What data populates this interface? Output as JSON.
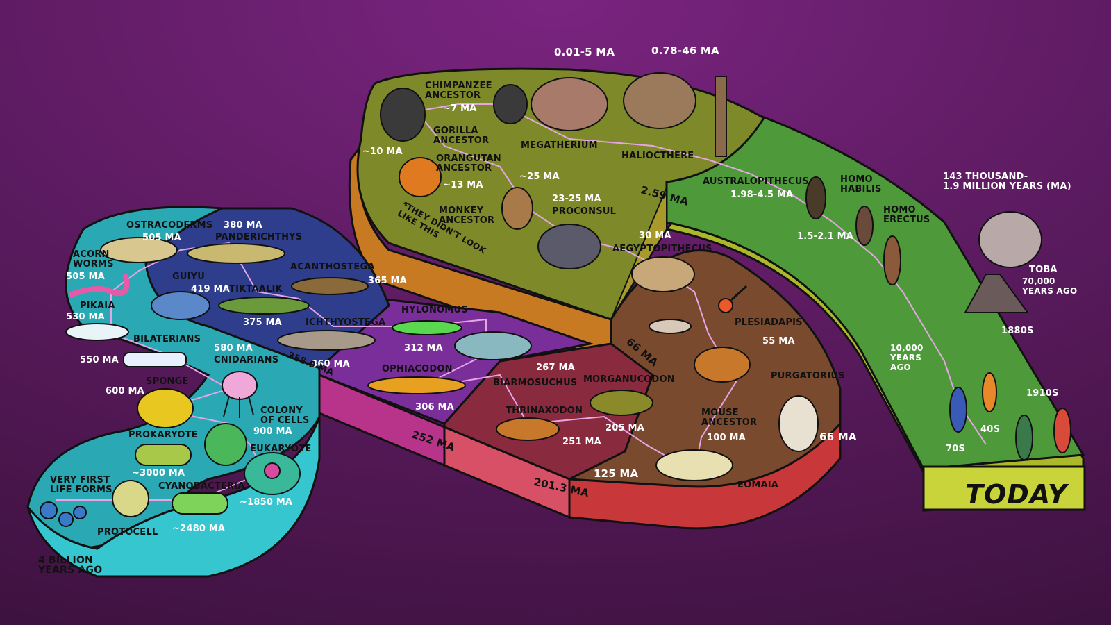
{
  "colors": {
    "background": "#5a1a5e",
    "teal": "#2aa8b4",
    "blue": "#2e3e8c",
    "purple": "#7a2e9a",
    "magenta": "#b8338a",
    "maroon": "#8a2a3e",
    "brown": "#7a4a2e",
    "red": "#c8383a",
    "olive": "#7e8a2a",
    "orange": "#d0882a",
    "green": "#4e9a3a",
    "lime": "#c8d43a"
  },
  "labels": {
    "four_billion": "4 BILLION\nYEARS AGO",
    "very_first": "VERY FIRST\nLIFE FORMS",
    "protocell": "PROTOCELL",
    "cyanobacteria": "CYANOBACTERIA",
    "cyano_ma": "~2480 Ma",
    "prokaryote": "PROKARYOTE",
    "prokaryote_ma": "~3000 Ma",
    "eukaryote": "EUKARYOTE",
    "eukaryote_ma": "~1850 Ma",
    "colony": "COLONY\nOF CELLS",
    "colony_ma": "900 Ma",
    "sponge": "SPONGE",
    "sponge_ma": "600 Ma",
    "cnidarians": "CNIDARIANS",
    "cnidarians_ma": "580 Ma",
    "bilaterians": "BILATERIANS",
    "bilaterians_ma": "550 Ma",
    "pikaia": "PIKAIA",
    "pikaia_ma": "530 Ma",
    "acorn": "ACORN\nWORMS",
    "acorn_ma": "505 Ma",
    "ostracoderms": "OSTRACODERMS",
    "ostracoderms_ma": "505 Ma",
    "guiyu": "GUIYU",
    "guiyu_ma": "419 Ma",
    "panderichthys": "PANDERICHTHYS",
    "panderichthys_ma": "380 Ma",
    "tiktaalik": "TIKTAALIK",
    "tiktaalik_ma": "375 Ma",
    "acanthostega": "ACANTHOSTEGA",
    "acanthostega_ma": "365 Ma",
    "ichthyostega": "ICHTHYOSTEGA",
    "ichthyostega_ma": "360 Ma",
    "boundary_3589": "358.9 Ma",
    "hylonomus": "HYLONOMUS",
    "hylonomus_ma": "312 Ma",
    "ophiacodon": "OPHIACODON",
    "ophiacodon_ma": "306 Ma",
    "biarmosuchus": "BIARMOSUCHUS",
    "biarmosuchus_ma": "267 Ma",
    "boundary_252": "252 Ma",
    "thrinaxodon": "THRINAXODON",
    "thrinaxodon_ma": "251 Ma",
    "morganucodon": "MORGANUCODON",
    "morganucodon_ma": "205 Ma",
    "boundary_2013": "201.3 Ma",
    "eomaia": "EOMAIA",
    "eomaia_ma": "125 Ma",
    "mouse_ancestor": "MOUSE\nANCESTOR",
    "mouse_ma": "100 Ma",
    "purgatorius": "PURGATORIUS",
    "purgatorius_ma": "66 Ma",
    "boundary_66": "66 Ma",
    "plesiadapis": "PLESIADAPIS",
    "plesiadapis_ma": "55 Ma",
    "aegyptopithecus": "AEGYPTOPITHECUS",
    "aegyptopithecus_ma": "30 Ma",
    "proconsul": "PROCONSUL",
    "proconsul_ma": "23-25 Ma",
    "monkey": "MONKEY\nANCESTOR",
    "monkey_ma": "~25 Ma",
    "orangutan": "ORANGUTAN\nANCESTOR",
    "orangutan_ma": "~13 Ma",
    "gorilla": "GORILLA\nANCESTOR",
    "gorilla_ma": "~10 Ma",
    "chimp": "CHIMPANZEE\nANCESTOR",
    "chimp_ma": "~7 Ma",
    "note": "*THEY DIDN'T LOOK\nLIKE THIS",
    "megatherium": "MEGATHERIUM",
    "megatherium_ma": "0.01-5 Ma",
    "haliocthere": "HALIOCTHERE",
    "haliocthere_ma": "0.78-46 Ma",
    "boundary_259": "2.59 Ma",
    "australopithecus": "AUSTRALOPITHECUS",
    "australopithecus_ma": "1.98-4.5 Ma",
    "homo_habilis": "HOMO\nHABILIS",
    "habilis_ma": "1.5-2.1 Ma",
    "homo_erectus": "HOMO\nERECTUS",
    "erectus_ma": "143 THOUSAND-\n1.9 MILLION YEARS (Ma)",
    "toba": "TOBA",
    "toba_years": "70,000\nYEARS AGO",
    "ten_thousand": "10,000\nYEARS\nAGO",
    "y1880": "1880s",
    "y1910": "1910s",
    "y40": "40s",
    "y70": "70s",
    "today": "TODAY"
  }
}
